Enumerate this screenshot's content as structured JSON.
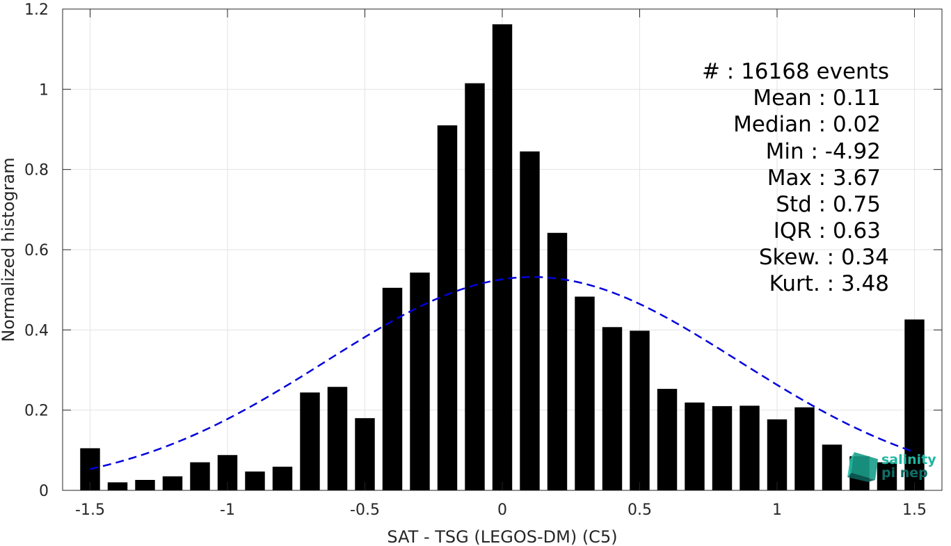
{
  "chart_data": {
    "type": "bar",
    "xlabel": "SAT - TSG (LEGOS-DM) (C5)",
    "ylabel": "Normalized histogram",
    "xlim": [
      -1.6,
      1.6
    ],
    "ylim": [
      0,
      1.2
    ],
    "xticks": [
      "-1.5",
      "-1",
      "-0.5",
      "0",
      "0.5",
      "1",
      "1.5"
    ],
    "xtick_values": [
      -1.5,
      -1,
      -0.5,
      0,
      0.5,
      1,
      1.5
    ],
    "yticks": [
      "0",
      "0.2",
      "0.4",
      "0.6",
      "0.8",
      "1",
      "1.2"
    ],
    "ytick_values": [
      0,
      0.2,
      0.4,
      0.6,
      0.8,
      1,
      1.2
    ],
    "grid": true,
    "bar_color": "#000000",
    "x": [
      -1.5,
      -1.4,
      -1.3,
      -1.2,
      -1.1,
      -1.0,
      -0.9,
      -0.8,
      -0.7,
      -0.6,
      -0.5,
      -0.4,
      -0.3,
      -0.2,
      -0.1,
      0.0,
      0.1,
      0.2,
      0.3,
      0.4,
      0.5,
      0.6,
      0.7,
      0.8,
      0.9,
      1.0,
      1.1,
      1.2,
      1.3,
      1.4,
      1.5
    ],
    "values": [
      0.105,
      0.02,
      0.026,
      0.035,
      0.07,
      0.088,
      0.047,
      0.059,
      0.244,
      0.258,
      0.18,
      0.505,
      0.543,
      0.91,
      1.015,
      1.162,
      0.845,
      0.642,
      0.483,
      0.407,
      0.398,
      0.253,
      0.219,
      0.21,
      0.211,
      0.177,
      0.207,
      0.114,
      0.085,
      0.07,
      0.426
    ],
    "fit_curve": {
      "type": "gaussian",
      "color": "#0000dd",
      "style": "dashed",
      "mean": 0.11,
      "std": 0.75,
      "x_range": [
        -1.5,
        1.5
      ]
    }
  },
  "stats": [
    {
      "label": "#  : 16168 events"
    },
    {
      "label": "Mean : 0.11"
    },
    {
      "label": "Median : 0.02"
    },
    {
      "label": "Min : -4.92"
    },
    {
      "label": "Max : 3.67"
    },
    {
      "label": "Std : 0.75"
    },
    {
      "label": "IQR : 0.63"
    },
    {
      "label": "Skew. : 0.34"
    },
    {
      "label": "Kurt. : 3.48"
    }
  ],
  "logo": {
    "line1": "salinity",
    "line2": "pi nep",
    "color1": "#1fb5a0",
    "color2": "#0e6e68"
  }
}
